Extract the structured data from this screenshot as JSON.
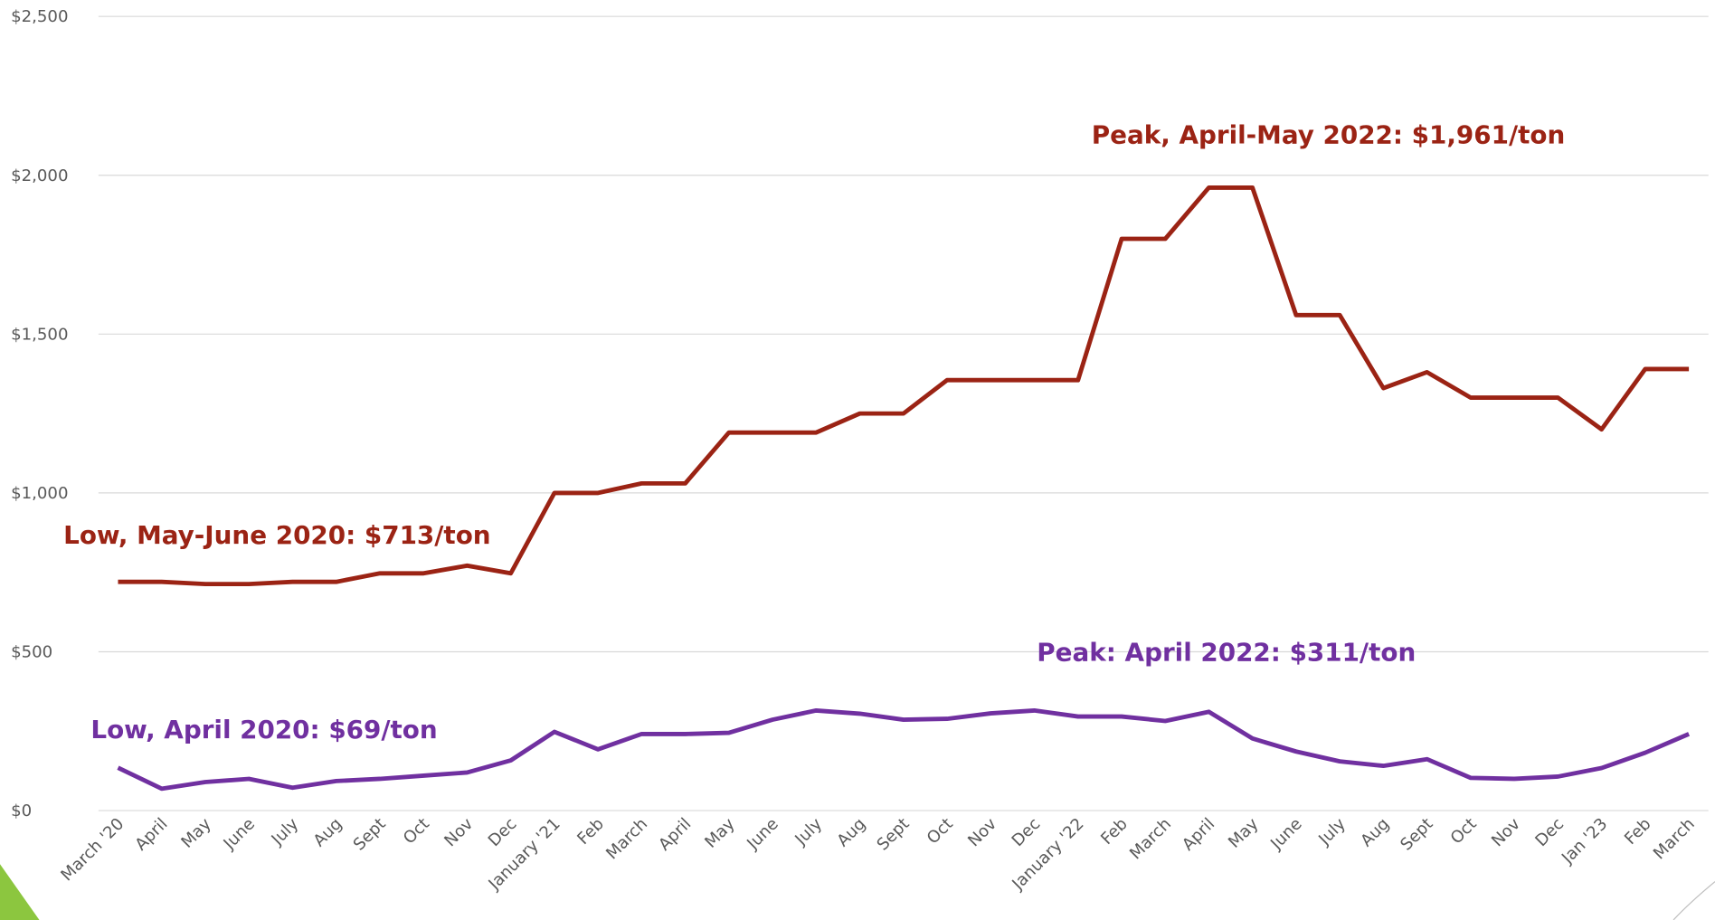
{
  "chart_data": {
    "type": "line",
    "categories": [
      "March '20",
      "April",
      "May",
      "June",
      "July",
      "Aug",
      "Sept",
      "Oct",
      "Nov",
      "Dec",
      "January '21",
      "Feb",
      "March",
      "April",
      "May",
      "June",
      "July",
      "Aug",
      "Sept",
      "Oct",
      "Nov",
      "Dec",
      "January '22",
      "Feb",
      "March",
      "April",
      "May",
      "June",
      "July",
      "Aug",
      "Sept",
      "Oct",
      "Nov",
      "Dec",
      "Jan '23",
      "Feb",
      "March"
    ],
    "series": [
      {
        "color": "#9b2314",
        "values": [
          720,
          720,
          713,
          713,
          720,
          720,
          747,
          747,
          771,
          747,
          1000,
          1000,
          1030,
          1030,
          1190,
          1190,
          1190,
          1250,
          1250,
          1355,
          1355,
          1355,
          1355,
          1800,
          1800,
          1961,
          1961,
          1560,
          1560,
          1330,
          1380,
          1300,
          1300,
          1300,
          1200,
          1390,
          1390
        ]
      },
      {
        "color": "#7030a0",
        "values": [
          135,
          69,
          90,
          100,
          72,
          93,
          100,
          110,
          120,
          158,
          248,
          193,
          241,
          241,
          245,
          286,
          315,
          305,
          286,
          289,
          306,
          315,
          296,
          296,
          282,
          311,
          227,
          186,
          155,
          141,
          162,
          103,
          100,
          107,
          134,
          182,
          241
        ]
      }
    ],
    "ylim": [
      0,
      2500
    ],
    "yticks": [
      {
        "value": 0,
        "label": "$0"
      },
      {
        "value": 500,
        "label": "$500"
      },
      {
        "value": 1000,
        "label": "$1,000"
      },
      {
        "value": 1500,
        "label": "$1,500"
      },
      {
        "value": 2000,
        "label": "$2,000"
      },
      {
        "value": 2500,
        "label": "$2,500"
      }
    ],
    "grid": true,
    "annotations": [
      "Peak, April-May 2022: $1,961/ton",
      "Low, May-June 2020: $713/ton",
      "Peak: April 2022: $311/ton",
      "Low, April 2020: $69/ton"
    ]
  }
}
